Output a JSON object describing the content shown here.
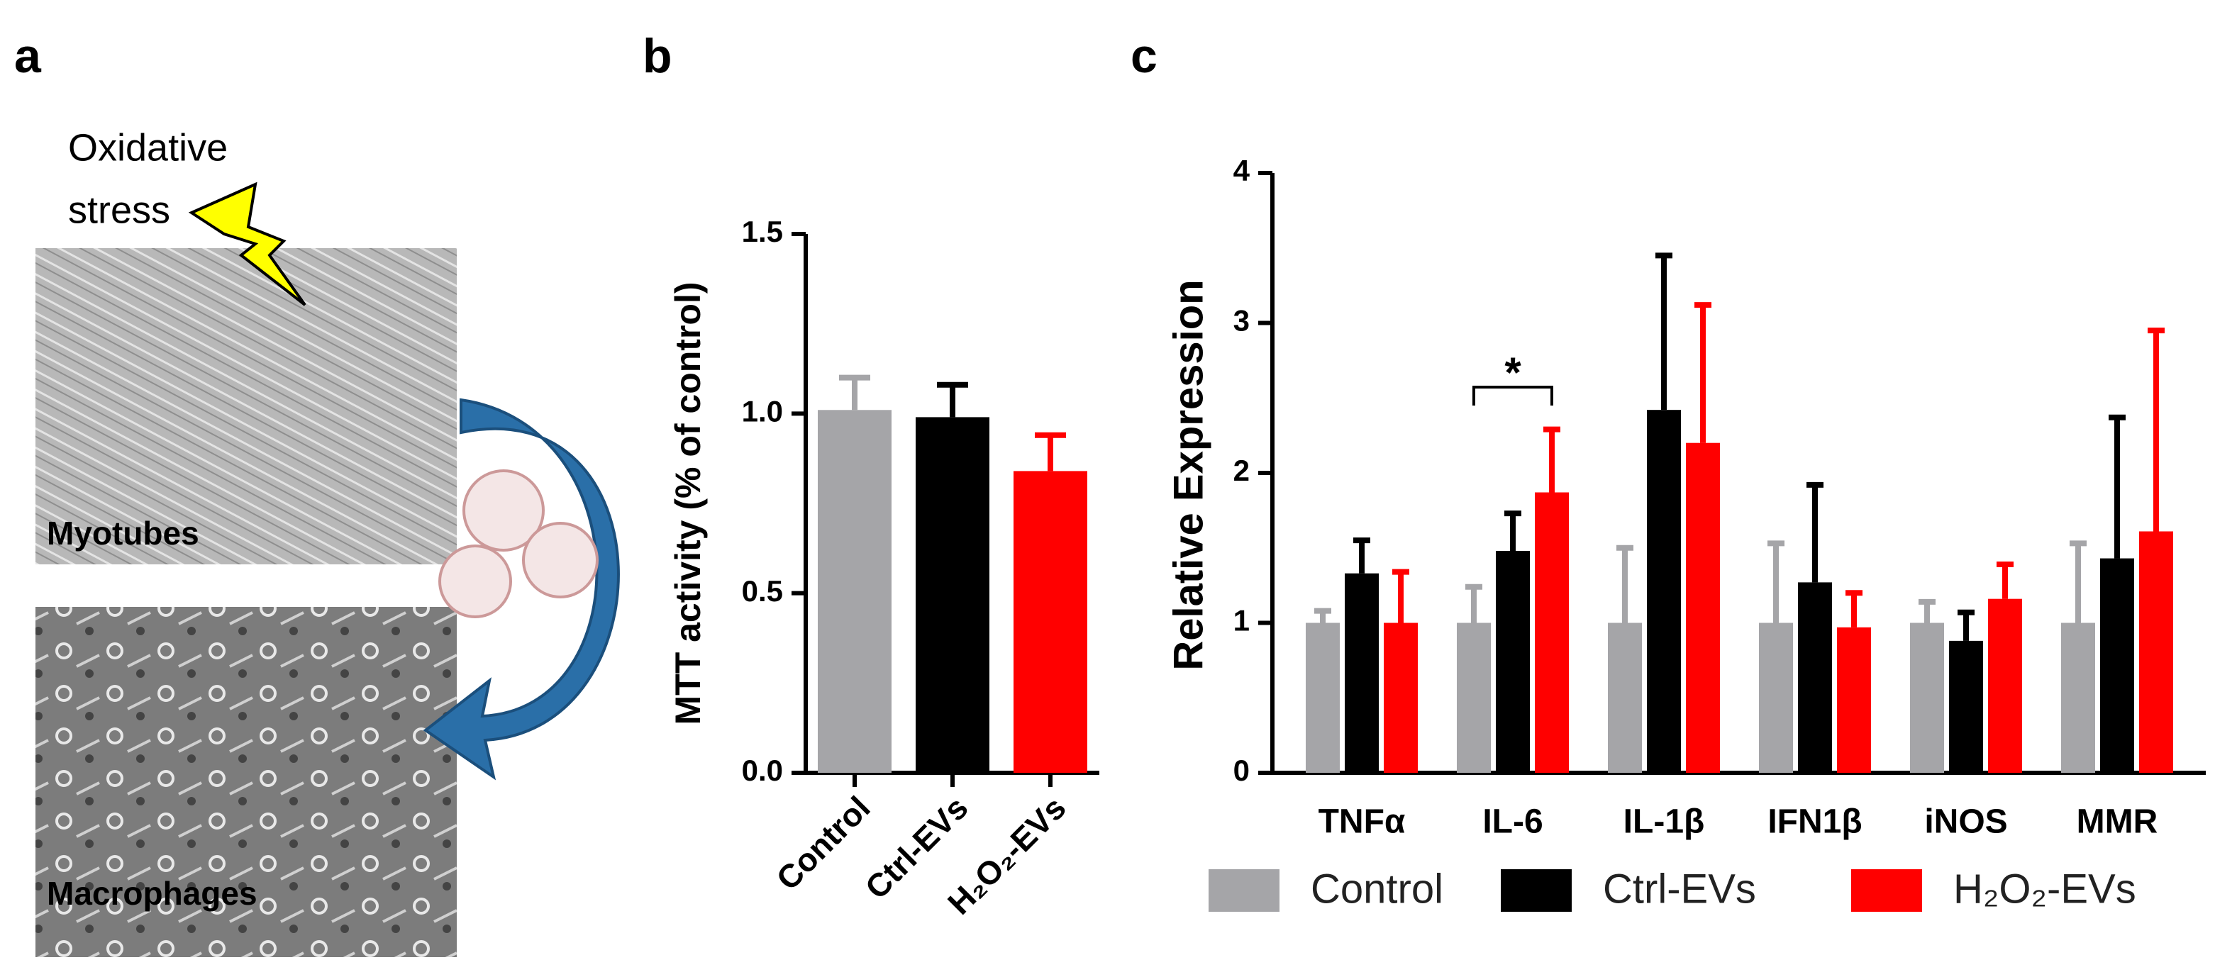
{
  "panel_labels": [
    "a",
    "b",
    "c"
  ],
  "illustration": {
    "stress_label": [
      "Oxidative",
      "stress"
    ],
    "cell_labels": [
      "Myotubes",
      "Macrophages"
    ]
  },
  "chart_data": [
    {
      "type": "bar",
      "ylabel": "MTT  activity (% of control)",
      "categories": [
        "Control",
        "Ctrl-EVs",
        "H₂O₂-EVs"
      ],
      "values": [
        1.01,
        0.99,
        0.84
      ],
      "errors": [
        0.09,
        0.09,
        0.1
      ],
      "colors": [
        "#a5a5a8",
        "#000000",
        "#ff0000"
      ],
      "ylim": [
        0,
        1.5
      ],
      "yticks": [
        {
          "value": 0,
          "label": "0.0"
        },
        0.5,
        {
          "value": 1,
          "label": "1.0"
        },
        1.5
      ]
    },
    {
      "type": "grouped_bar",
      "ylabel": "Relative Expression",
      "categories": [
        "TNFα",
        "IL-6",
        "IL-1β",
        "IFN1β",
        "iNOS",
        "MMR"
      ],
      "series": [
        {
          "name": "Control",
          "color": "#a5a5a8",
          "values": [
            1.0,
            1.0,
            1.0,
            1.0,
            1.0,
            1.0
          ],
          "errors": [
            0.08,
            0.24,
            0.5,
            0.53,
            0.14,
            0.53
          ]
        },
        {
          "name": "Ctrl-EVs",
          "color": "#000000",
          "values": [
            1.33,
            1.48,
            2.42,
            1.27,
            0.88,
            1.43
          ],
          "errors": [
            0.22,
            0.25,
            1.03,
            0.65,
            0.19,
            0.94
          ]
        },
        {
          "name": "H₂O₂-EVs",
          "color": "#ff0000",
          "values": [
            1.0,
            1.87,
            2.2,
            0.97,
            1.16,
            1.61
          ],
          "errors": [
            0.34,
            0.42,
            0.92,
            0.23,
            0.23,
            1.34
          ]
        }
      ],
      "annotation": "*",
      "ylim": [
        0,
        4
      ],
      "yticks": [
        0,
        1,
        2,
        3,
        4
      ]
    }
  ]
}
